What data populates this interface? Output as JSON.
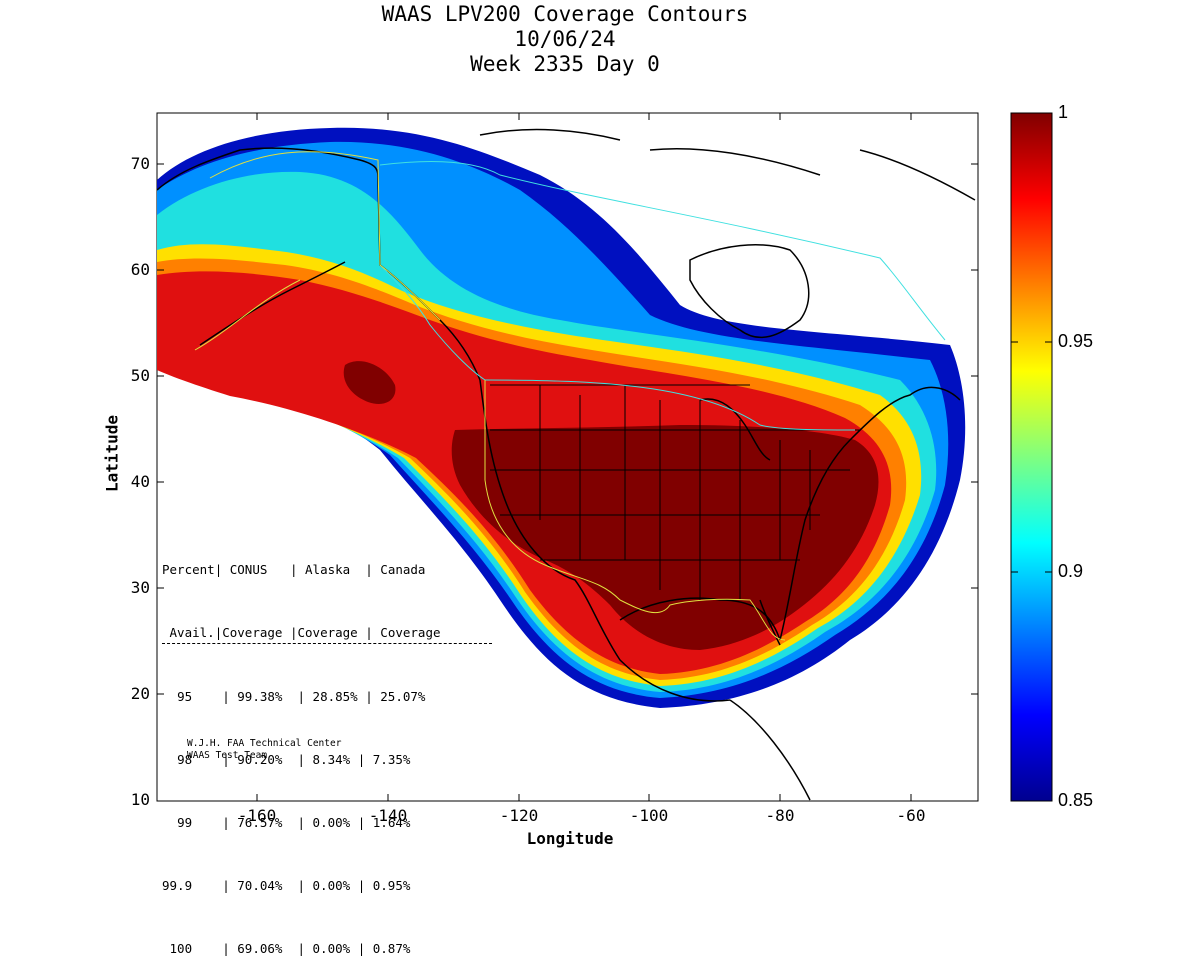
{
  "title": {
    "line1": "WAAS LPV200 Coverage Contours",
    "line2": "10/06/24",
    "line3": "Week 2335 Day 0"
  },
  "axes": {
    "xlabel": "Longitude",
    "ylabel": "Latitude",
    "x_ticks": [
      "-160",
      "-140",
      "-120",
      "-100",
      "-80",
      "-60"
    ],
    "y_ticks": [
      "70",
      "60",
      "50",
      "40",
      "30",
      "20",
      "10"
    ],
    "xlim": [
      -175,
      -50
    ],
    "ylim": [
      10,
      75
    ]
  },
  "colorbar": {
    "ticks": [
      "1",
      "0.95",
      "0.9",
      "0.85"
    ],
    "range": [
      0.85,
      1
    ],
    "colormap": "jet"
  },
  "stats_table": {
    "header1": [
      "Percent",
      "CONUS",
      "Alaska",
      "Canada"
    ],
    "header2": [
      "Avail.",
      "Coverage",
      "Coverage",
      "Coverage"
    ],
    "rows": [
      [
        "95",
        "99.38%",
        "28.85%",
        "25.07%"
      ],
      [
        "98",
        "90.20%",
        "8.34%",
        "7.35%"
      ],
      [
        "99",
        "76.57%",
        "0.00%",
        "1.64%"
      ],
      [
        "99.9",
        "70.04%",
        "0.00%",
        "0.95%"
      ],
      [
        "100",
        "69.06%",
        "0.00%",
        "0.87%"
      ]
    ]
  },
  "credit": {
    "line1": "W.J.H. FAA Technical Center",
    "line2": "WAAS Test Team"
  },
  "colors": {
    "darkred": "#800000",
    "red": "#e01010",
    "orange": "#ff8000",
    "yellow": "#ffe000",
    "cyan": "#20e0e0",
    "blue": "#0090ff",
    "navy": "#0010c0"
  }
}
